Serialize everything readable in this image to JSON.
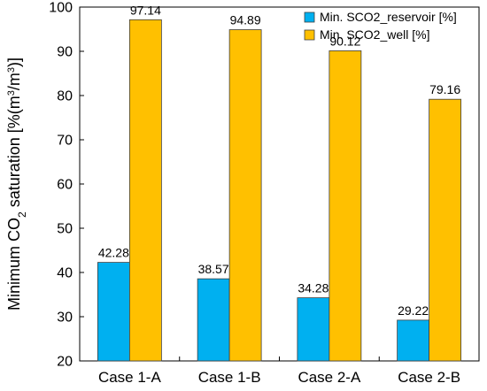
{
  "chart_data": {
    "type": "bar",
    "categories": [
      "Case 1-A",
      "Case 1-B",
      "Case 2-A",
      "Case 2-B"
    ],
    "series": [
      {
        "name": "Min. SCO2_reservoir [%]",
        "values": [
          42.28,
          38.57,
          34.28,
          29.22
        ],
        "color": "#00B0F0"
      },
      {
        "name": "Min. SCO2_well [%]",
        "values": [
          97.14,
          94.89,
          90.12,
          79.16
        ],
        "color": "#FFC000"
      }
    ],
    "data_labels": [
      [
        "42.28",
        "38.57",
        "34.28",
        "29.22"
      ],
      [
        "97.14",
        "94.89",
        "90.12",
        "79.16"
      ]
    ],
    "ylabel": {
      "prefix": "Minimum CO",
      "sub": "2",
      "mid": " saturation [%(m",
      "sup1": "3",
      "slash": "/m",
      "sup2": "3",
      "suffix": ")]"
    },
    "xlabel": "",
    "ylim": [
      20,
      100
    ],
    "yticks": [
      20,
      30,
      40,
      50,
      60,
      70,
      80,
      90,
      100
    ],
    "grid": false,
    "legend_position": "top-right"
  }
}
